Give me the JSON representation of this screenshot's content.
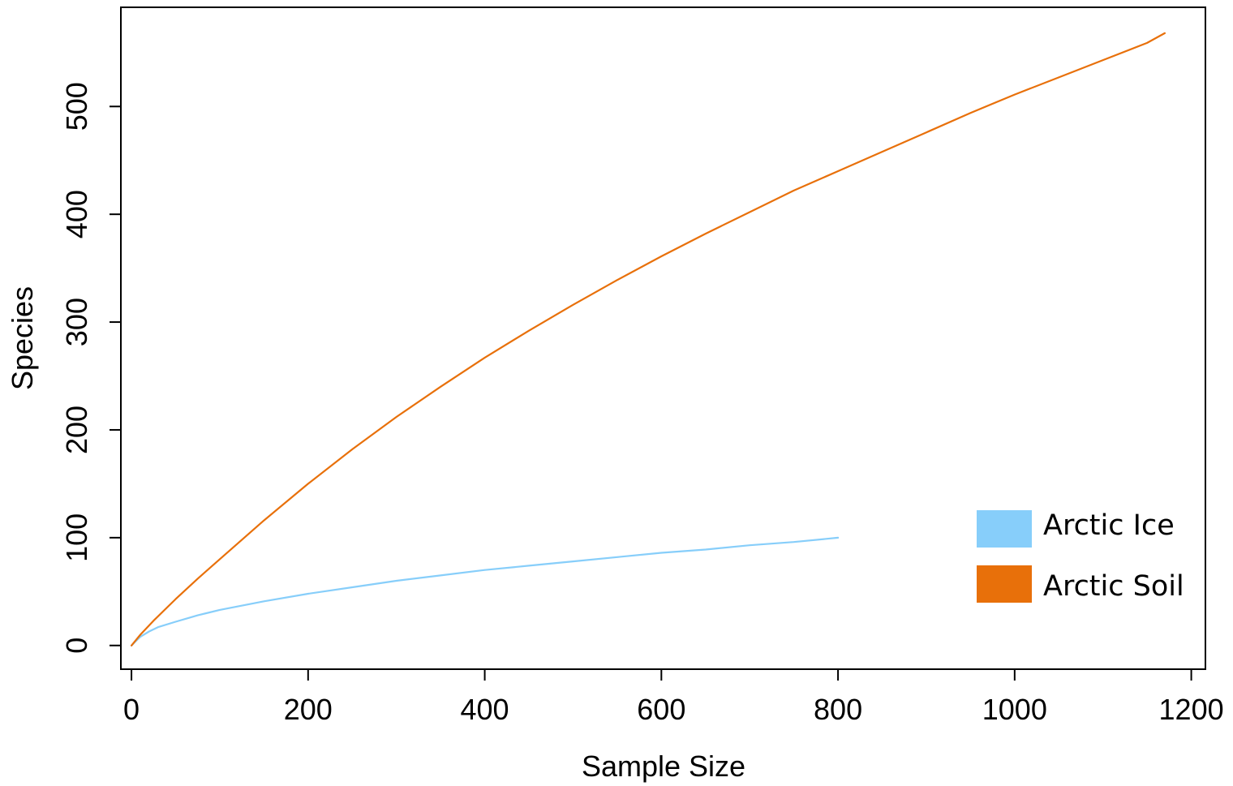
{
  "chart_data": {
    "type": "line",
    "title": "",
    "xlabel": "Sample Size",
    "ylabel": "Species",
    "xlim": [
      -12,
      1216
    ],
    "ylim": [
      -22,
      592
    ],
    "xticks": [
      0,
      200,
      400,
      600,
      800,
      1000,
      1200
    ],
    "yticks": [
      0,
      100,
      200,
      300,
      400,
      500
    ],
    "xtick_labels": [
      "0",
      "200",
      "400",
      "600",
      "800",
      "1000",
      "1200"
    ],
    "ytick_labels": [
      "0",
      "100",
      "200",
      "300",
      "400",
      "500"
    ],
    "grid": false,
    "legend_position": "bottom-right",
    "series": [
      {
        "name": "Arctic Ice",
        "color": "#87CEFA",
        "x": [
          0,
          5,
          10,
          20,
          30,
          50,
          75,
          100,
          150,
          200,
          250,
          300,
          350,
          400,
          450,
          500,
          550,
          600,
          650,
          700,
          750,
          800
        ],
        "y": [
          0,
          4,
          8,
          13,
          17,
          22,
          28,
          33,
          41,
          48,
          54,
          60,
          65,
          70,
          74,
          78,
          82,
          86,
          89,
          93,
          96,
          100
        ]
      },
      {
        "name": "Arctic Soil",
        "color": "#E8700A",
        "x": [
          0,
          10,
          25,
          50,
          75,
          100,
          150,
          200,
          250,
          300,
          350,
          400,
          450,
          500,
          550,
          600,
          650,
          700,
          750,
          800,
          850,
          900,
          950,
          1000,
          1050,
          1100,
          1150,
          1170
        ],
        "y": [
          0,
          10,
          23,
          43,
          62,
          80,
          116,
          150,
          182,
          212,
          240,
          267,
          292,
          316,
          339,
          361,
          382,
          402,
          422,
          440,
          458,
          476,
          494,
          511,
          527,
          543,
          559,
          568
        ]
      }
    ]
  }
}
